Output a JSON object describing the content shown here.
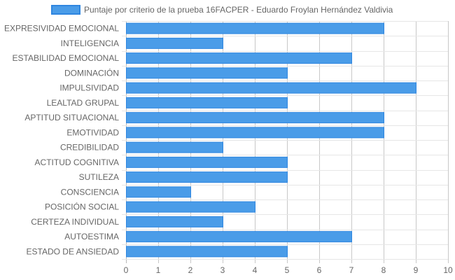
{
  "chart_data": {
    "type": "bar",
    "orientation": "horizontal",
    "categories": [
      "EXPRESIVIDAD EMOCIONAL",
      "INTELIGENCIA",
      "ESTABILIDAD EMOCIONAL",
      "DOMINACIÓN",
      "IMPULSIVIDAD",
      "LEALTAD GRUPAL",
      "APTITUD SITUACIONAL",
      "EMOTIVIDAD",
      "CREDIBILIDAD",
      "ACTITUD COGNITIVA",
      "SUTILEZA",
      "CONSCIENCIA",
      "POSICIÓN SOCIAL",
      "CERTEZA INDIVIDUAL",
      "AUTOESTIMA",
      "ESTADO DE ANSIEDAD"
    ],
    "series": [
      {
        "name": "Puntaje por criterio de la prueba 16FACPER - Eduardo Froylan Hernández Valdivia",
        "values": [
          8,
          3,
          7,
          5,
          9,
          5,
          8,
          8,
          3,
          5,
          5,
          2,
          4,
          3,
          7,
          5
        ],
        "color": "#4a9ce8",
        "border_color": "#2f86e0"
      }
    ],
    "xlim": [
      0,
      10
    ],
    "x_ticks": [
      "0",
      "1",
      "2",
      "3",
      "4",
      "5",
      "6",
      "7",
      "8",
      "9",
      "10"
    ],
    "grid": true,
    "legend_position": "top"
  }
}
